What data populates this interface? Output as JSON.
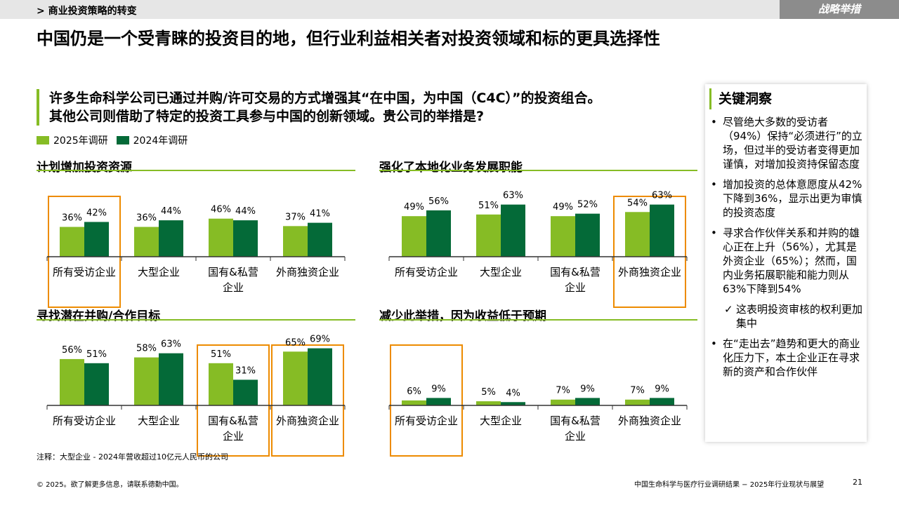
{
  "header": {
    "breadcrumb": "> 商业投资策略的转变",
    "tag": "战略举措",
    "title": "中国仍是一个受青睐的投资目的地，但行业利益相关者对投资领域和标的更具选择性"
  },
  "question": {
    "line1": "许多生命科学公司已通过并购/许可交易的方式增强其“在中国，为中国（C4C）”的投资组合。",
    "line2": "其他公司则借助了特定的投资工具参与中国的创新领域。贵公司的举措是?"
  },
  "legend": [
    {
      "label": "2025年调研",
      "color": "#86bc25"
    },
    {
      "label": "2024年调研",
      "color": "#046a38"
    }
  ],
  "chart_data": [
    {
      "type": "bar",
      "title": "计划增加投资资源",
      "categories": [
        "所有受访企业",
        "大型企业",
        "国有&私营企业",
        "外商独资企业"
      ],
      "category_lines": [
        [
          "所有受访企业"
        ],
        [
          "大型企业"
        ],
        [
          "国有&私营",
          "企业"
        ],
        [
          "外商独资企业"
        ]
      ],
      "series": [
        {
          "name": "2025年调研",
          "values": [
            36,
            36,
            46,
            37
          ]
        },
        {
          "name": "2024年调研",
          "values": [
            42,
            44,
            44,
            41
          ]
        }
      ],
      "labels": [
        [
          "36%",
          "36%",
          "46%",
          "37%"
        ],
        [
          "42%",
          "44%",
          "44%",
          "41%"
        ]
      ],
      "highlight": [
        0
      ],
      "ylim": [
        0,
        100
      ]
    },
    {
      "type": "bar",
      "title": "强化了本地化业务发展职能",
      "categories": [
        "所有受访企业",
        "大型企业",
        "国有&私营企业",
        "外商独资企业"
      ],
      "category_lines": [
        [
          "所有受访企业"
        ],
        [
          "大型企业"
        ],
        [
          "国有&私营",
          "企业"
        ],
        [
          "外商独资企业"
        ]
      ],
      "series": [
        {
          "name": "2025年调研",
          "values": [
            49,
            51,
            49,
            54
          ]
        },
        {
          "name": "2024年调研",
          "values": [
            56,
            63,
            52,
            63
          ]
        }
      ],
      "labels": [
        [
          "49%",
          "51%",
          "49%",
          "54%"
        ],
        [
          "56%",
          "63%",
          "52%",
          "63%"
        ]
      ],
      "highlight": [
        3
      ],
      "ylim": [
        0,
        100
      ]
    },
    {
      "type": "bar",
      "title": "寻找潜在并购/合作目标",
      "categories": [
        "所有受访企业",
        "大型企业",
        "国有&私营企业",
        "外商独资企业"
      ],
      "category_lines": [
        [
          "所有受访企业"
        ],
        [
          "大型企业"
        ],
        [
          "国有&私营",
          "企业"
        ],
        [
          "外商独资企业"
        ]
      ],
      "series": [
        {
          "name": "2025年调研",
          "values": [
            56,
            58,
            51,
            65
          ]
        },
        {
          "name": "2024年调研",
          "values": [
            51,
            63,
            31,
            69
          ]
        }
      ],
      "labels": [
        [
          "56%",
          "58%",
          "51%",
          "65%"
        ],
        [
          "51%",
          "63%",
          "31%",
          "69%"
        ]
      ],
      "highlight": [
        2,
        3
      ],
      "ylim": [
        0,
        100
      ]
    },
    {
      "type": "bar",
      "title": "减少此举措，因为收益低于预期",
      "categories": [
        "所有受访企业",
        "大型企业",
        "国有&私营企业",
        "外商独资企业"
      ],
      "category_lines": [
        [
          "所有受访企业"
        ],
        [
          "大型企业"
        ],
        [
          "国有&私营",
          "企业"
        ],
        [
          "外商独资企业"
        ]
      ],
      "series": [
        {
          "name": "2025年调研",
          "values": [
            6,
            5,
            7,
            7
          ]
        },
        {
          "name": "2024年调研",
          "values": [
            9,
            4,
            9,
            9
          ]
        }
      ],
      "labels": [
        [
          "6%",
          "5%",
          "7%",
          "7%"
        ],
        [
          "9%",
          "4%",
          "9%",
          "9%"
        ]
      ],
      "highlight": [
        0
      ],
      "ylim": [
        0,
        100
      ]
    }
  ],
  "insights": {
    "title": "关键洞察",
    "items": [
      "尽管绝大多数的受访者（94%）保持“必须进行”的立场，但过半的受访者变得更加谨慎，对增加投资持保留态度",
      "增加投资的总体意愿度从42%下降到36%，显示出更为审慎的投资态度",
      "寻求合作伙伴关系和并购的雄心正在上升（56%），尤其是外资企业（65%）；然而，国内业务拓展职能和能力则从63%下降到54%",
      "这表明投资审核的权利更加集中",
      "在“走出去”趋势和更大的商业化压力下，本土企业正在寻求新的资产和合作伙伴"
    ],
    "check": "✓"
  },
  "colors": {
    "green_light": "#86bc25",
    "green_dark": "#046a38",
    "highlight": "#ed8b00",
    "axis": "#333333"
  },
  "note": "注释：大型企业 - 2024年营收超过10亿元人民币的公司",
  "footer": {
    "copyright": "© 2025。欲了解更多信息，请联系德勤中国。",
    "report": "中国生命科学与医疗行业调研结果 − 2025年行业现状与展望",
    "page": "21"
  }
}
